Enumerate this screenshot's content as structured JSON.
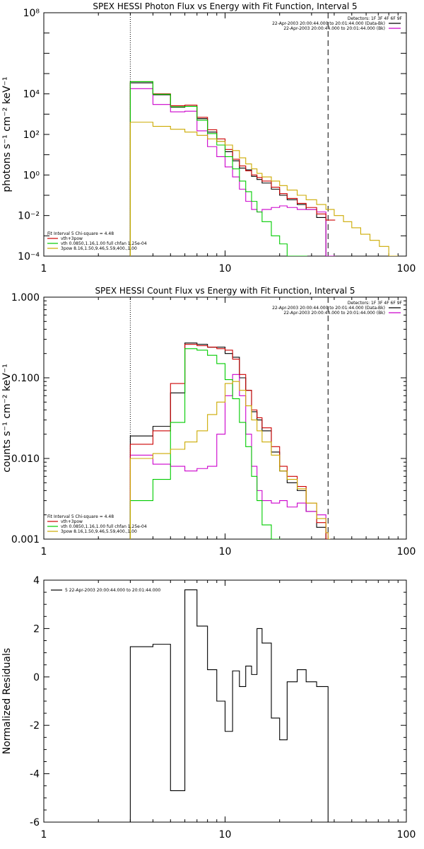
{
  "chart_data": [
    {
      "type": "line",
      "title": "SPEX HESSI Photon Flux vs Energy with Fit Function, Interval 5",
      "ylabel": "photons s⁻¹ cm⁻² keV⁻¹",
      "xlabel": "",
      "x_scale": "log",
      "y_scale": "log",
      "xlim": [
        1,
        100
      ],
      "ylim": [
        0.0001,
        100000000
      ],
      "x_ticks": [
        1,
        10,
        100
      ],
      "x_tick_labels": [
        "1",
        "10",
        "100"
      ],
      "y_ticks": [
        0.0001,
        0.01,
        1,
        100,
        10000,
        100000000
      ],
      "y_tick_labels": [
        "10⁻⁴",
        "10⁻²",
        "10⁰",
        "10²",
        "10⁴",
        "10⁸"
      ],
      "vlines": [
        {
          "x": 3,
          "style": "dotted"
        },
        {
          "x": 37,
          "style": "dashed"
        }
      ],
      "legend_top": [
        "Detectors: 1F 3F 4F 6F 9F",
        "22-Apr-2003 20:00:44.000 to 20:01:44.000 (Data-Bk)",
        "22-Apr-2003 20:00:44.000 to 20:01:44.000 (Bk)"
      ],
      "legend_bottom": [
        "Fit Interval 5   Chi-square = 4.48",
        "vth+3pow",
        "vth 0.0850,1.16,1.00  full chfan 1.25e-04",
        "3pow 8.16,1.50,9.46,5.59,400.,1.00"
      ],
      "series": [
        {
          "name": "22-Apr-2003 20:00:44.000 to 20:01:44.000 (Data-Bk)",
          "color": "#000000",
          "x": [
            3,
            4,
            5,
            6,
            7,
            8,
            9,
            10,
            11,
            12,
            13,
            14,
            15,
            16,
            18,
            20,
            22,
            25,
            28,
            32,
            36
          ],
          "y": [
            35000,
            9000,
            2200,
            2400,
            600,
            130,
            45,
            14,
            5,
            2.2,
            1.8,
            0.85,
            0.6,
            0.4,
            0.2,
            0.1,
            0.06,
            0.035,
            0.02,
            0.008,
            0.0
          ]
        },
        {
          "name": "22-Apr-2003 20:00:44.000 to 20:01:44.000 (Bk)",
          "color": "#cc00cc",
          "x": [
            3,
            4,
            5,
            6,
            7,
            8,
            9,
            10,
            11,
            12,
            13,
            14,
            15,
            16,
            18,
            20,
            22,
            25,
            28,
            32,
            36
          ],
          "y": [
            18000,
            3000,
            1300,
            1400,
            150,
            25,
            8,
            2.5,
            0.8,
            0.2,
            0.05,
            0.02,
            0.015,
            0.02,
            0.025,
            0.03,
            0.025,
            0.02,
            0.02,
            0.015,
            0.0001
          ]
        },
        {
          "name": "vth+3pow",
          "color": "#cc0000",
          "x": [
            3,
            4,
            5,
            6,
            7,
            8,
            9,
            10,
            11,
            12,
            13,
            14,
            15,
            16,
            18,
            20,
            22,
            25,
            28,
            32,
            36
          ],
          "y": [
            40000,
            10000,
            2600,
            2800,
            700,
            170,
            60,
            18,
            6,
            2.8,
            1.6,
            1.0,
            0.75,
            0.5,
            0.25,
            0.12,
            0.07,
            0.04,
            0.025,
            0.012,
            0.006
          ]
        },
        {
          "name": "vth 0.0850,1.16,1.00  full chfan 1.25e-04",
          "color": "#00cc00",
          "x": [
            3,
            4,
            5,
            6,
            7,
            8,
            9,
            10,
            11,
            12,
            13,
            14,
            15,
            16,
            18,
            20,
            22,
            25
          ],
          "y": [
            40000,
            9500,
            2300,
            2400,
            500,
            110,
            30,
            8,
            2,
            0.5,
            0.15,
            0.05,
            0.015,
            0.005,
            0.001,
            0.0004,
            0.0001,
            5e-05
          ]
        },
        {
          "name": "3pow 8.16,1.50,9.46,5.59,400.,1.00",
          "color": "#ccaa00",
          "x": [
            3,
            4,
            5,
            6,
            7,
            8,
            9,
            10,
            11,
            12,
            13,
            14,
            15,
            16,
            18,
            20,
            22,
            25,
            28,
            32,
            36,
            40,
            45,
            50,
            56,
            63,
            71,
            80
          ],
          "y": [
            400,
            250,
            180,
            130,
            90,
            60,
            45,
            30,
            16,
            7,
            3.5,
            2,
            1.2,
            0.8,
            0.5,
            0.3,
            0.18,
            0.1,
            0.06,
            0.035,
            0.02,
            0.01,
            0.005,
            0.0025,
            0.0012,
            0.0006,
            0.0003,
            0.0001
          ]
        }
      ]
    },
    {
      "type": "line",
      "title": "SPEX HESSI Count Flux vs Energy with Fit Function, Interval 5",
      "ylabel": "counts s⁻¹ cm⁻² keV⁻¹",
      "xlabel": "",
      "x_scale": "log",
      "y_scale": "log",
      "xlim": [
        1,
        100
      ],
      "ylim": [
        0.001,
        1.0
      ],
      "x_ticks": [
        1,
        10,
        100
      ],
      "x_tick_labels": [
        "1",
        "10",
        "100"
      ],
      "y_ticks": [
        0.001,
        0.01,
        0.1,
        1.0
      ],
      "y_tick_labels": [
        "0.001",
        "0.010",
        "0.100",
        "1.000"
      ],
      "vlines": [
        {
          "x": 3,
          "style": "dotted"
        },
        {
          "x": 37,
          "style": "dashed"
        }
      ],
      "legend_top": [
        "Detectors: 1F 3F 4F 6F 9F",
        "22-Apr-2003 20:00:44.000 to 20:01:44.000 (Data-Bk)",
        "22-Apr-2003 20:00:44.000 to 20:01:44.000 (Bk)"
      ],
      "legend_bottom": [
        "Fit Interval 5   Chi-square = 4.48",
        "vth+3pow",
        "vth 0.0850,1.16,1.00  full chfan 1.25e-04",
        "3pow 8.16,1.50,9.46,5.59,400.,1.00"
      ],
      "series": [
        {
          "name": "22-Apr-2003 20:00:44.000 to 20:01:44.000 (Data-Bk)",
          "color": "#000000",
          "x": [
            3,
            4,
            5,
            6,
            7,
            8,
            9,
            10,
            11,
            12,
            13,
            14,
            15,
            16,
            18,
            20,
            22,
            25,
            28,
            32,
            36,
            37
          ],
          "y": [
            0.019,
            0.025,
            0.065,
            0.27,
            0.26,
            0.24,
            0.24,
            0.2,
            0.18,
            0.1,
            0.07,
            0.038,
            0.03,
            0.022,
            0.012,
            0.007,
            0.005,
            0.004,
            0.0022,
            0.0014,
            0.001,
            0.001
          ]
        },
        {
          "name": "22-Apr-2003 20:00:44.000 to 20:01:44.000 (Bk)",
          "color": "#cc00cc",
          "x": [
            3,
            4,
            5,
            6,
            7,
            8,
            9,
            10,
            11,
            12,
            13,
            14,
            15,
            16,
            18,
            20,
            22,
            25,
            28,
            32,
            36,
            37
          ],
          "y": [
            0.011,
            0.0085,
            0.008,
            0.007,
            0.0075,
            0.008,
            0.02,
            0.06,
            0.11,
            0.06,
            0.02,
            0.008,
            0.004,
            0.003,
            0.0028,
            0.003,
            0.0025,
            0.0028,
            0.0022,
            0.002,
            0.0012,
            0.001
          ]
        },
        {
          "name": "vth+3pow",
          "color": "#cc0000",
          "x": [
            3,
            4,
            5,
            6,
            7,
            8,
            9,
            10,
            11,
            12,
            13,
            14,
            15,
            16,
            18,
            20,
            22,
            25,
            28,
            32,
            36,
            37
          ],
          "y": [
            0.015,
            0.022,
            0.085,
            0.26,
            0.25,
            0.24,
            0.23,
            0.22,
            0.17,
            0.11,
            0.07,
            0.04,
            0.032,
            0.024,
            0.014,
            0.008,
            0.006,
            0.0045,
            0.0028,
            0.0016,
            0.001,
            0.001
          ]
        },
        {
          "name": "vth 0.0850,1.16,1.00  full chfan 1.25e-04",
          "color": "#00cc00",
          "x": [
            3,
            4,
            5,
            6,
            7,
            8,
            9,
            10,
            11,
            12,
            13,
            14,
            15,
            16,
            18
          ],
          "y": [
            0.003,
            0.0055,
            0.028,
            0.23,
            0.22,
            0.19,
            0.15,
            0.095,
            0.055,
            0.028,
            0.014,
            0.006,
            0.003,
            0.0015,
            0.001
          ]
        },
        {
          "name": "3pow 8.16,1.50,9.46,5.59,400.,1.00",
          "color": "#ccaa00",
          "x": [
            3,
            4,
            5,
            6,
            7,
            8,
            9,
            10,
            11,
            12,
            13,
            14,
            15,
            16,
            18,
            20,
            22,
            25,
            28,
            32,
            36,
            37
          ],
          "y": [
            0.01,
            0.0115,
            0.013,
            0.016,
            0.022,
            0.035,
            0.05,
            0.085,
            0.09,
            0.07,
            0.045,
            0.03,
            0.022,
            0.016,
            0.011,
            0.007,
            0.0055,
            0.0042,
            0.0028,
            0.0018,
            0.0012,
            0.001
          ]
        }
      ]
    },
    {
      "type": "line",
      "title": "",
      "ylabel": "Normalized Residuals",
      "xlabel": "",
      "x_scale": "log",
      "y_scale": "linear",
      "xlim": [
        1,
        100
      ],
      "ylim": [
        -6,
        4
      ],
      "x_ticks": [
        1,
        10,
        100
      ],
      "x_tick_labels": [
        "1",
        "10",
        "100"
      ],
      "y_ticks": [
        -6,
        -4,
        -2,
        0,
        2,
        4
      ],
      "y_tick_labels": [
        "-6",
        "-4",
        "-2",
        "0",
        "2",
        "4"
      ],
      "legend": [
        "5  22-Apr-2003 20:00:44.000 to 20:01:44.000"
      ],
      "series": [
        {
          "name": "5  22-Apr-2003 20:00:44.000 to 20:01:44.000",
          "color": "#000000",
          "edges": [
            3,
            4,
            5,
            6,
            7,
            8,
            9,
            10,
            11,
            12,
            13,
            14,
            15,
            16,
            18,
            20,
            22,
            25,
            28,
            32,
            36,
            37
          ],
          "values": [
            1.25,
            1.35,
            -4.7,
            3.6,
            2.1,
            0.3,
            -1.0,
            -2.25,
            0.25,
            -0.4,
            0.45,
            0.1,
            2.0,
            1.4,
            -1.7,
            -2.6,
            -0.2,
            0.3,
            -0.2,
            -0.4,
            -0.4
          ]
        }
      ]
    }
  ]
}
